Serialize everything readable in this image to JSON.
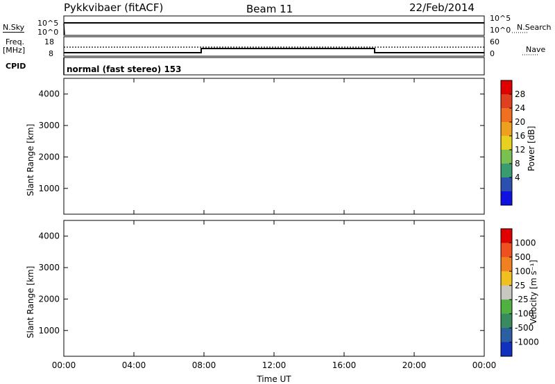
{
  "header": {
    "station": "Pykkvibaer (fitACF)",
    "beam": "Beam 11",
    "date": "22/Feb/2014"
  },
  "top_panels": {
    "nsky_label": "N.Sky",
    "nsearch_label": "N.Search",
    "nsky_ticks": [
      "10^5",
      "10^0"
    ],
    "nsearch_ticks": [
      "10^5",
      "10^0"
    ],
    "freq_label_line1": "Freq.",
    "freq_label_line2": "[MHz]",
    "freq_ticks": [
      "18",
      "8"
    ],
    "nave_label": "Nave",
    "nave_ticks": [
      "60",
      "0"
    ],
    "cpid_label": "CPID",
    "cpid_value": "normal (fast stereo) 153"
  },
  "chart_data": [
    {
      "type": "heatmap",
      "name": "power",
      "ylabel": "Slant Range [km]",
      "xlabel": "",
      "ylim": [
        180,
        4500
      ],
      "yticks": [
        1000,
        2000,
        3000,
        4000
      ],
      "colorbar_label": "Power [dB]",
      "colorbar_ticks": [
        "28",
        "24",
        "20",
        "16",
        "12",
        "8",
        "4"
      ],
      "colors": [
        "#1010e0",
        "#2a50b0",
        "#3a9a70",
        "#7ac050",
        "#e8d020",
        "#f0a020",
        "#f07020",
        "#e04020",
        "#e00000"
      ]
    },
    {
      "type": "heatmap",
      "name": "velocity",
      "ylabel": "Slant Range [km]",
      "xlabel": "Time UT",
      "ylim": [
        180,
        4500
      ],
      "yticks": [
        1000,
        2000,
        3000,
        4000
      ],
      "xticks": [
        "00:00",
        "04:00",
        "08:00",
        "12:00",
        "16:00",
        "20:00",
        "00:00"
      ],
      "colorbar_label": "Velocity [m s⁻¹]",
      "colorbar_ticks": [
        "1000",
        "500",
        "100",
        "25",
        "-25",
        "-100",
        "-500",
        "-1000"
      ],
      "colors": [
        "#1030c0",
        "#2a60a0",
        "#3a8a60",
        "#50b040",
        "#c8c8c0",
        "#f0c020",
        "#f08020",
        "#f05020",
        "#e00000"
      ]
    }
  ]
}
